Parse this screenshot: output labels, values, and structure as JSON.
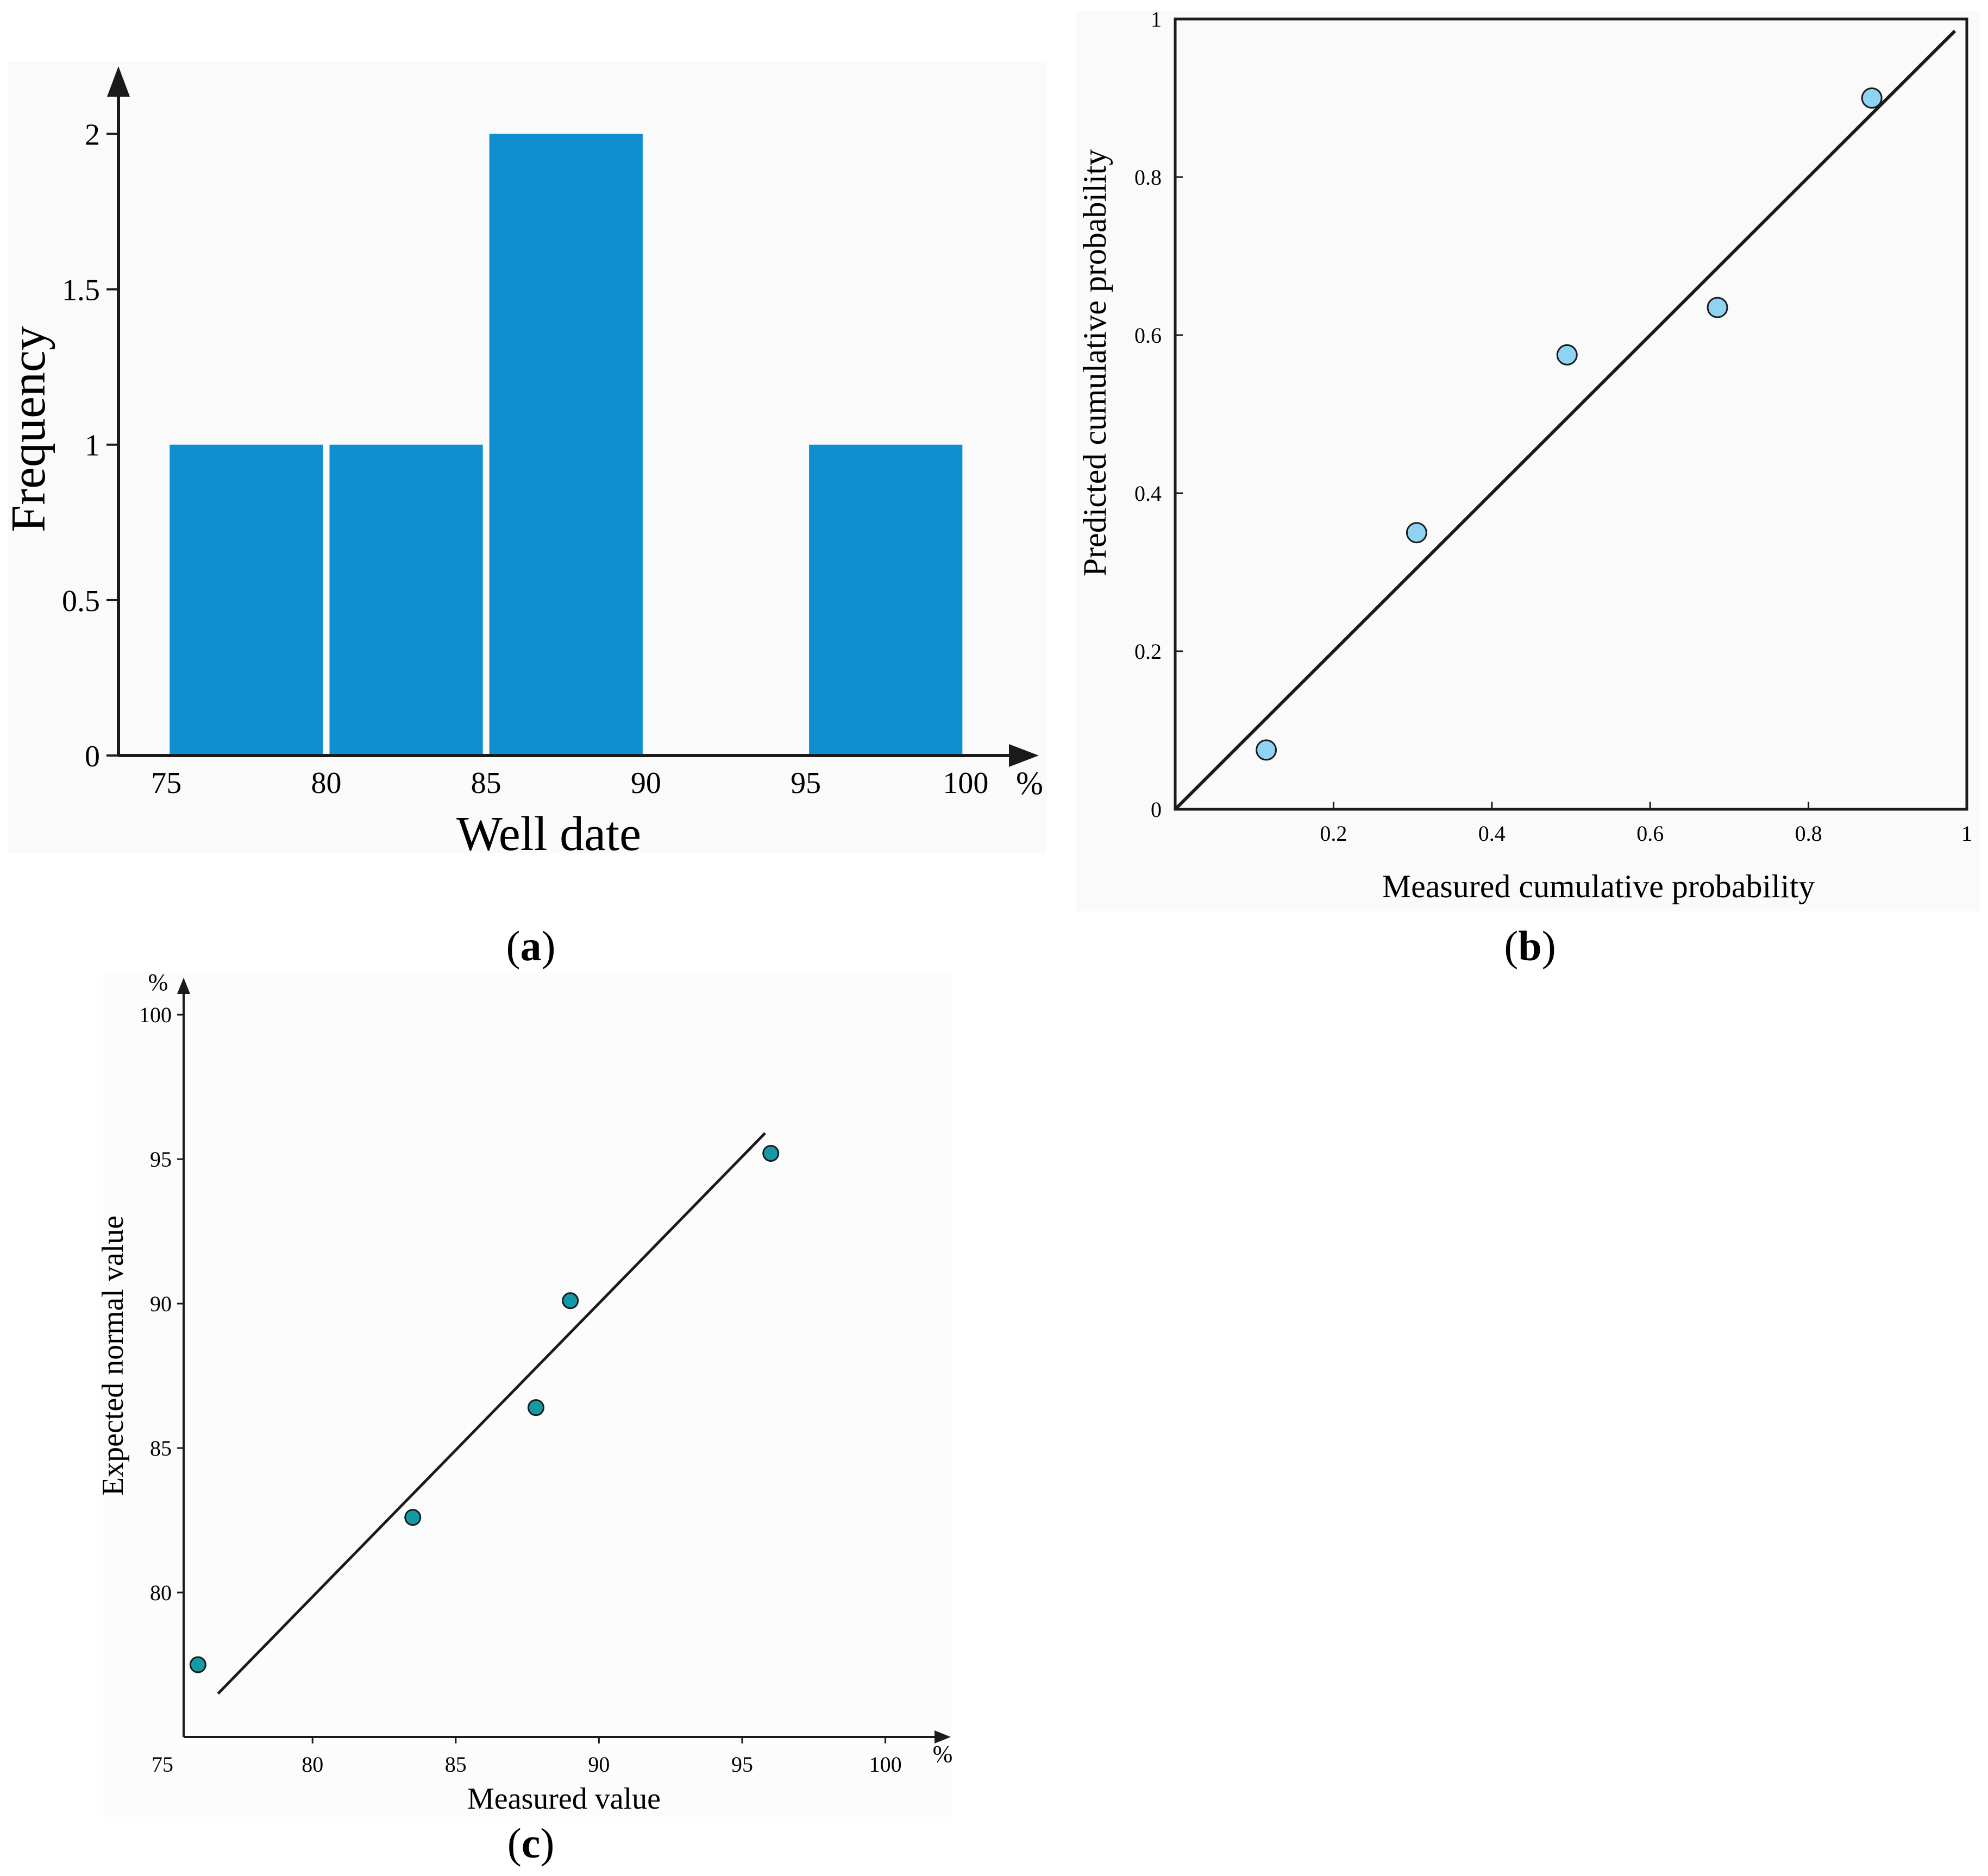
{
  "chart_data": [
    {
      "id": "a",
      "type": "bar",
      "panel_label": "a",
      "xlabel": "Well date",
      "ylabel": "Frequency",
      "x_unit": "%",
      "bins": [
        {
          "from": 75,
          "to": 80,
          "value": 1
        },
        {
          "from": 80,
          "to": 85,
          "value": 1
        },
        {
          "from": 85,
          "to": 90,
          "value": 2
        },
        {
          "from": 95,
          "to": 100,
          "value": 1
        }
      ],
      "xticks": [
        {
          "v": 75,
          "label": "75"
        },
        {
          "v": 80,
          "label": "80"
        },
        {
          "v": 85,
          "label": "85"
        },
        {
          "v": 90,
          "label": "90"
        },
        {
          "v": 95,
          "label": "95"
        },
        {
          "v": 100,
          "label": "100"
        }
      ],
      "yticks": [
        {
          "v": 0,
          "label": "0"
        },
        {
          "v": 0.5,
          "label": "0.5"
        },
        {
          "v": 1,
          "label": "1"
        },
        {
          "v": 1.5,
          "label": "1.5"
        },
        {
          "v": 2,
          "label": "2"
        }
      ],
      "xlim": [
        73.5,
        102
      ],
      "ylim": [
        0,
        2.2
      ],
      "bar_color": "#0f8fd0"
    },
    {
      "id": "b",
      "type": "scatter",
      "panel_label": "b",
      "xlabel": "Measured cumulative probability",
      "ylabel": "Predicted cumulative probability",
      "points": [
        {
          "x": 0.115,
          "y": 0.075
        },
        {
          "x": 0.305,
          "y": 0.35
        },
        {
          "x": 0.495,
          "y": 0.575
        },
        {
          "x": 0.685,
          "y": 0.635
        },
        {
          "x": 0.88,
          "y": 0.9
        }
      ],
      "reference_line": [
        [
          0,
          0
        ],
        [
          0.985,
          0.985
        ]
      ],
      "xticks": [
        {
          "v": 0.2,
          "label": "0.2"
        },
        {
          "v": 0.4,
          "label": "0.4"
        },
        {
          "v": 0.6,
          "label": "0.6"
        },
        {
          "v": 0.8,
          "label": "0.8"
        },
        {
          "v": 1,
          "label": "1"
        }
      ],
      "yticks": [
        {
          "v": 0,
          "label": "0"
        },
        {
          "v": 0.2,
          "label": "0.2"
        },
        {
          "v": 0.4,
          "label": "0.4"
        },
        {
          "v": 0.6,
          "label": "0.6"
        },
        {
          "v": 0.8,
          "label": "0.8"
        },
        {
          "v": 1,
          "label": "1"
        }
      ],
      "xlim": [
        0,
        1
      ],
      "ylim": [
        0,
        1
      ],
      "point_color": "#8fd3f2"
    },
    {
      "id": "c",
      "type": "scatter",
      "panel_label": "c",
      "xlabel": "Measured value",
      "ylabel": "Expected normal value",
      "x_unit": "%",
      "y_unit": "%",
      "points": [
        {
          "x": 76.0,
          "y": 77.5
        },
        {
          "x": 83.5,
          "y": 82.6
        },
        {
          "x": 87.8,
          "y": 86.4
        },
        {
          "x": 89.0,
          "y": 90.1
        },
        {
          "x": 96.0,
          "y": 95.2
        }
      ],
      "reference_line": [
        [
          76.7,
          76.5
        ],
        [
          95.8,
          95.9
        ]
      ],
      "xticks": [
        {
          "v": 75,
          "label": "75"
        },
        {
          "v": 80,
          "label": "80"
        },
        {
          "v": 85,
          "label": "85"
        },
        {
          "v": 90,
          "label": "90"
        },
        {
          "v": 95,
          "label": "95"
        },
        {
          "v": 100,
          "label": "100"
        }
      ],
      "yticks": [
        {
          "v": 75,
          "label": "75"
        },
        {
          "v": 80,
          "label": "80"
        },
        {
          "v": 85,
          "label": "85"
        },
        {
          "v": 90,
          "label": "90"
        },
        {
          "v": 95,
          "label": "95"
        },
        {
          "v": 100,
          "label": "100"
        }
      ],
      "xlim": [
        75.5,
        102
      ],
      "ylim": [
        75,
        101
      ],
      "point_color": "#149aa6"
    }
  ]
}
